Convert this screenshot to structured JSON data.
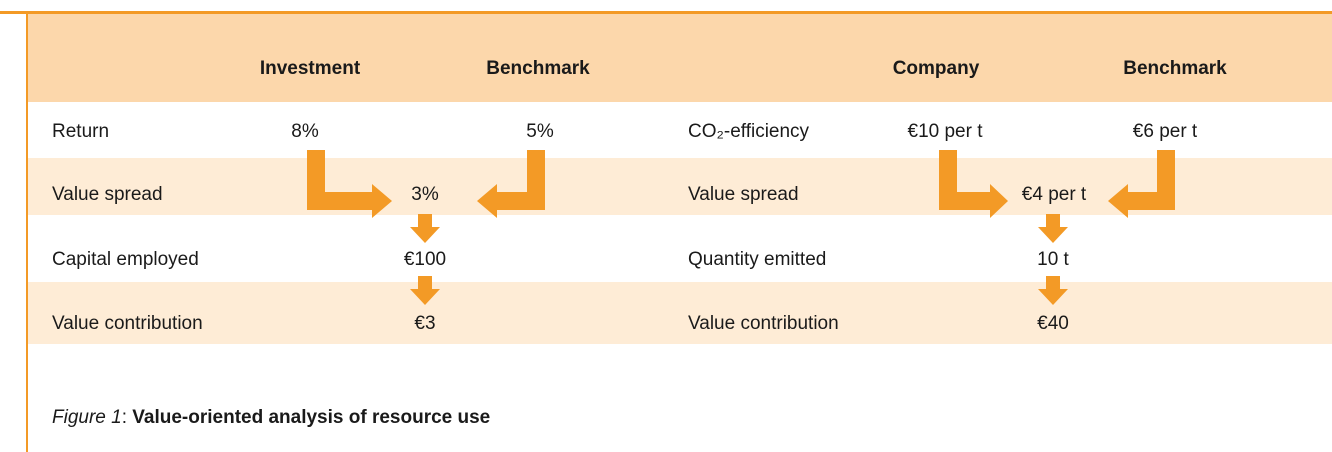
{
  "left_table": {
    "headers": [
      "Investment",
      "Benchmark"
    ],
    "rows": [
      {
        "label": "Return",
        "values": [
          "8%",
          "5%"
        ]
      },
      {
        "label": "Value spread",
        "values": [
          "3%"
        ]
      },
      {
        "label": "Capital employed",
        "values": [
          "€100"
        ]
      },
      {
        "label": "Value contribution",
        "values": [
          "€3"
        ]
      }
    ]
  },
  "right_table": {
    "headers": [
      "Company",
      "Benchmark"
    ],
    "rows": [
      {
        "label": "CO₂-efficiency",
        "values": [
          "€10 per t",
          "€6 per t"
        ]
      },
      {
        "label": "Value spread",
        "values": [
          "€4 per t"
        ]
      },
      {
        "label": "Quantity emitted",
        "values": [
          "10 t"
        ]
      },
      {
        "label": "Value contribution",
        "values": [
          "€40"
        ]
      }
    ]
  },
  "caption": {
    "label": "Figure 1",
    "separator": ":",
    "text": "Value-oriented analysis of resource use"
  }
}
